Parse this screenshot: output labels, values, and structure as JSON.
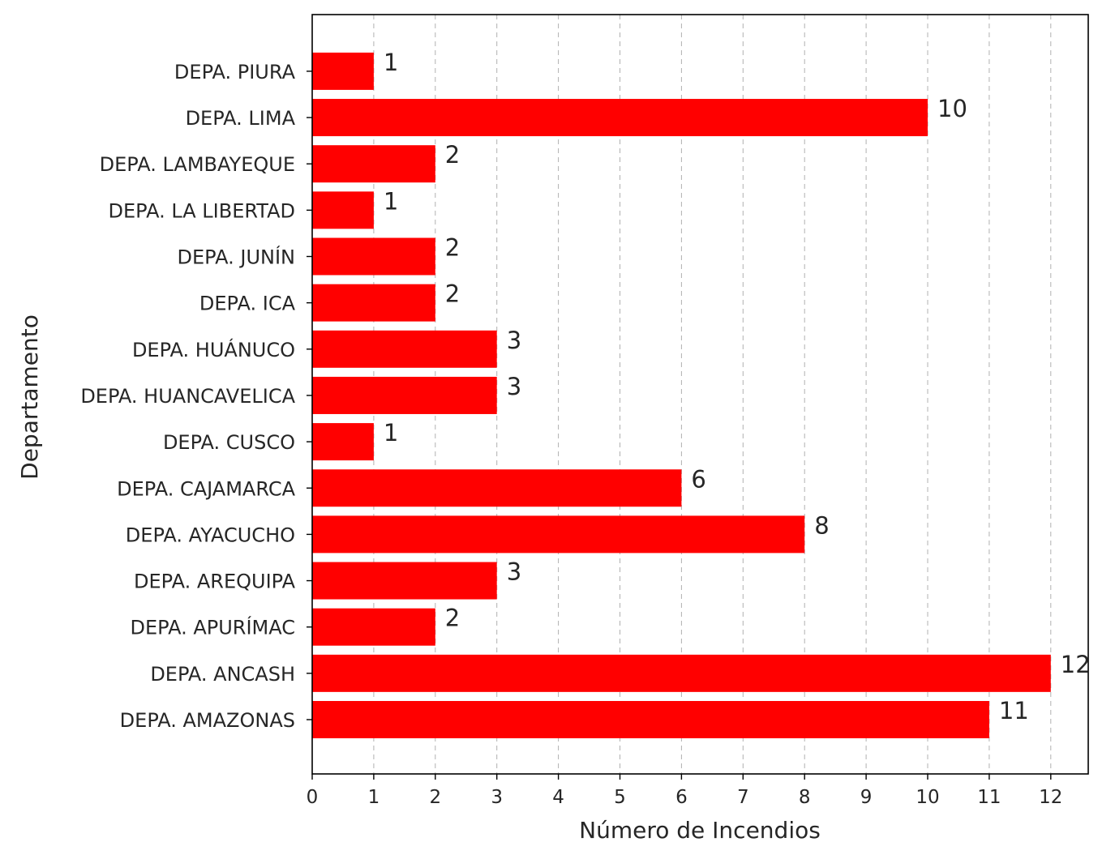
{
  "chart_data": {
    "type": "bar",
    "orientation": "horizontal",
    "title": "",
    "xlabel": "Número de Incendios",
    "ylabel": "Departamento",
    "categories": [
      "DEPA. AMAZONAS",
      "DEPA. ANCASH",
      "DEPA. APURÍMAC",
      "DEPA. AREQUIPA",
      "DEPA. AYACUCHO",
      "DEPA. CAJAMARCA",
      "DEPA. CUSCO",
      "DEPA. HUANCAVELICA",
      "DEPA. HUÁNUCO",
      "DEPA. ICA",
      "DEPA. JUNÍN",
      "DEPA. LA LIBERTAD",
      "DEPA. LAMBAYEQUE",
      "DEPA. LIMA",
      "DEPA. PIURA"
    ],
    "values": [
      11,
      12,
      2,
      3,
      8,
      6,
      1,
      3,
      3,
      2,
      2,
      1,
      2,
      10,
      1
    ],
    "data_labels": [
      "11",
      "12",
      "2",
      "3",
      "8",
      "6",
      "1",
      "3",
      "3",
      "2",
      "2",
      "1",
      "2",
      "10",
      "1"
    ],
    "xticks": [
      "0",
      "1",
      "2",
      "3",
      "4",
      "5",
      "6",
      "7",
      "8",
      "9",
      "10",
      "11",
      "12"
    ],
    "xlim": [
      0,
      12.6
    ],
    "grid": "x-axis dashed",
    "bar_color": "#ff0000"
  }
}
